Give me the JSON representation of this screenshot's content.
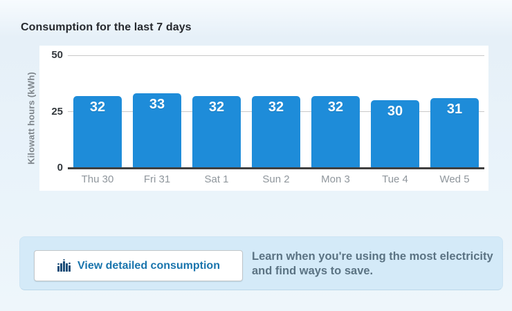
{
  "page": {
    "title": "Consumption for the last 7 days"
  },
  "chart_data": {
    "type": "bar",
    "title": "Consumption for the last 7 days",
    "categories": [
      "Thu 30",
      "Fri 31",
      "Sat 1",
      "Sun 2",
      "Mon 3",
      "Tue 4",
      "Wed 5"
    ],
    "values": [
      32,
      33,
      32,
      32,
      32,
      30,
      31
    ],
    "bar_value_labels": [
      "32",
      "33",
      "32",
      "32",
      "32",
      "30",
      "31"
    ],
    "xlabel": "",
    "ylabel": "Kilowatt hours (kWh)",
    "ylim": [
      0,
      50
    ],
    "yticks": [
      0,
      25,
      50
    ],
    "grid": true,
    "legend": false,
    "bar_color": "#1e8cd9",
    "value_label_color": "#ffffff"
  },
  "cta": {
    "button_label": "View detailed consumption",
    "button_icon": "bar-chart-icon",
    "info_text": "Learn when you're using the most electricity and find ways to save."
  },
  "colors": {
    "accent_blue": "#1e8cd9",
    "button_text": "#1a75ad",
    "panel_background": "#d4eaf8",
    "icon_navy": "#1c4e79",
    "page_background": "#eaf3fa"
  }
}
